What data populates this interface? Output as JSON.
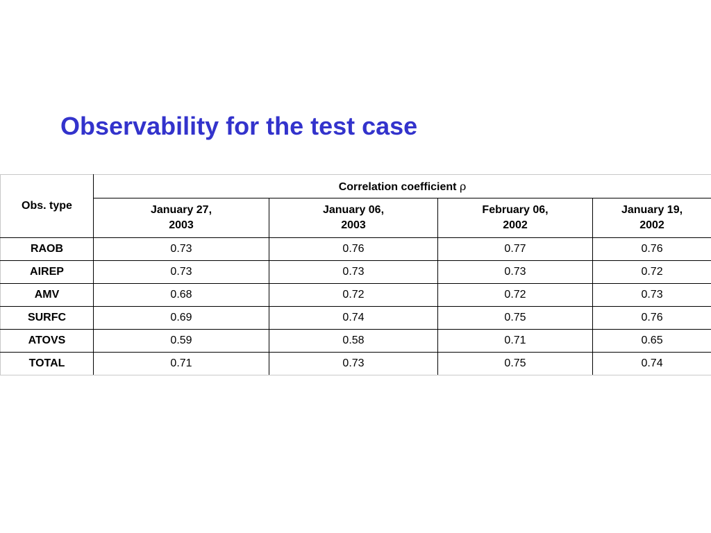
{
  "slide": {
    "title": "Observability for the test case"
  },
  "table": {
    "row_header_label": "Obs. type",
    "group_header": {
      "label": "Correlation coefficient",
      "symbol": "ρ"
    },
    "date_columns": [
      {
        "line1": "January 27,",
        "line2": "2003"
      },
      {
        "line1": "January 06,",
        "line2": "2003"
      },
      {
        "line1": "February 06,",
        "line2": "2002"
      },
      {
        "line1": "January 19,",
        "line2": "2002"
      }
    ],
    "rows": [
      {
        "type": "RAOB",
        "values": [
          "0.73",
          "0.76",
          "0.77",
          "0.76"
        ]
      },
      {
        "type": "AIREP",
        "values": [
          "0.73",
          "0.73",
          "0.73",
          "0.72"
        ]
      },
      {
        "type": "AMV",
        "values": [
          "0.68",
          "0.72",
          "0.72",
          "0.73"
        ]
      },
      {
        "type": "SURFC",
        "values": [
          "0.69",
          "0.74",
          "0.75",
          "0.76"
        ]
      },
      {
        "type": "ATOVS",
        "values": [
          "0.59",
          "0.58",
          "0.71",
          "0.65"
        ]
      },
      {
        "type": "TOTAL",
        "values": [
          "0.71",
          "0.73",
          "0.75",
          "0.74"
        ]
      }
    ]
  }
}
